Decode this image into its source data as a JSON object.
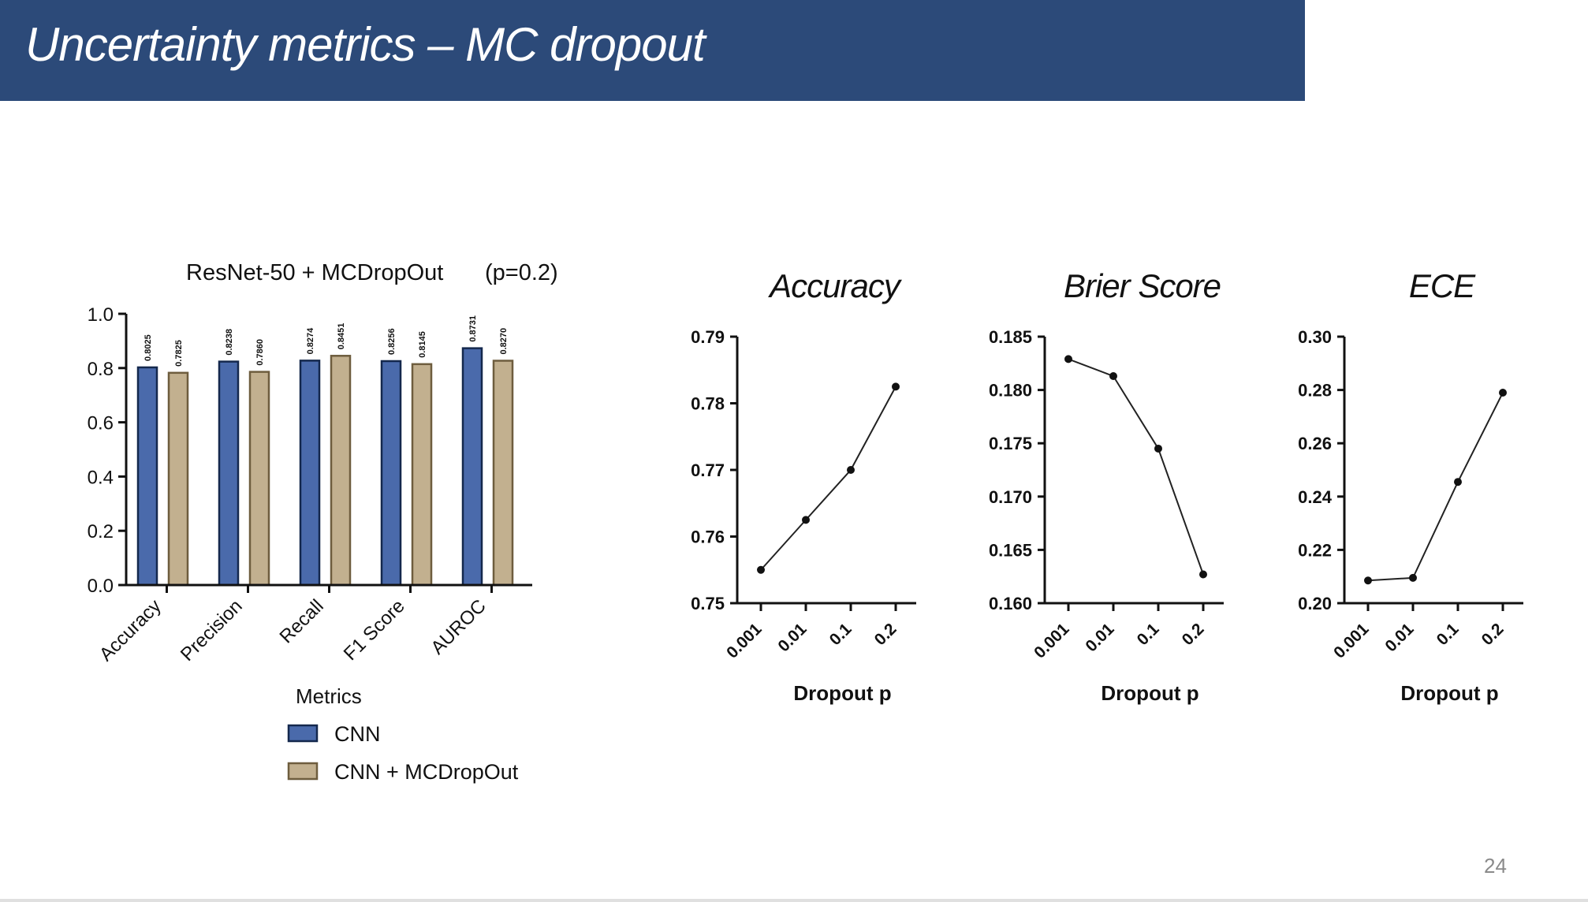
{
  "slide": {
    "title": "Uncertainty metrics – MC dropout",
    "page_number": "24",
    "colors": {
      "title_bar": "#2c4a79",
      "title_text": "#ffffff"
    }
  },
  "chart_data": [
    {
      "type": "bar",
      "title": "ResNet-50 + MCDropOut",
      "subtitle": "(p=0.2)",
      "xlabel": "Metrics",
      "ylabel": "",
      "ylim": [
        0,
        1.0
      ],
      "yticks": [
        "0.0",
        "0.2",
        "0.4",
        "0.6",
        "0.8",
        "1.0"
      ],
      "categories": [
        "Accuracy",
        "Precision",
        "Recall",
        "F1 Score",
        "AUROC"
      ],
      "series": [
        {
          "name": "CNN",
          "color": "#4a6aab",
          "values": [
            0.8025,
            0.8238,
            0.8274,
            0.8256,
            0.8731
          ],
          "labels": [
            "0.8025",
            "0.8238",
            "0.8274",
            "0.8256",
            "0.8731"
          ]
        },
        {
          "name": "CNN + MCDropOut",
          "color": "#c2b08f",
          "values": [
            0.7825,
            0.786,
            0.8451,
            0.8145,
            0.827
          ],
          "labels": [
            "0.7825",
            "0.7860",
            "0.8451",
            "0.8145",
            "0.8270"
          ]
        }
      ],
      "legend_position": "bottom-left",
      "grid": false
    },
    {
      "type": "line",
      "title": "Accuracy",
      "xlabel": "Dropout p",
      "categories": [
        "0.001",
        "0.01",
        "0.1",
        "0.2"
      ],
      "values": [
        0.755,
        0.7625,
        0.77,
        0.7825
      ],
      "ylim": [
        0.75,
        0.79
      ],
      "yticks": [
        "0.75",
        "0.76",
        "0.77",
        "0.78",
        "0.79"
      ],
      "grid": false
    },
    {
      "type": "line",
      "title": "Brier Score",
      "xlabel": "Dropout p",
      "categories": [
        "0.001",
        "0.01",
        "0.1",
        "0.2"
      ],
      "values": [
        0.1829,
        0.1813,
        0.1745,
        0.1627
      ],
      "ylim": [
        0.16,
        0.185
      ],
      "yticks": [
        "0.160",
        "0.165",
        "0.170",
        "0.175",
        "0.180",
        "0.185"
      ],
      "grid": false
    },
    {
      "type": "line",
      "title": "ECE",
      "xlabel": "Dropout p",
      "categories": [
        "0.001",
        "0.01",
        "0.1",
        "0.2"
      ],
      "values": [
        0.2085,
        0.2095,
        0.2455,
        0.279
      ],
      "ylim": [
        0.2,
        0.3
      ],
      "yticks": [
        "0.20",
        "0.22",
        "0.24",
        "0.26",
        "0.28",
        "0.30"
      ],
      "grid": false
    }
  ]
}
